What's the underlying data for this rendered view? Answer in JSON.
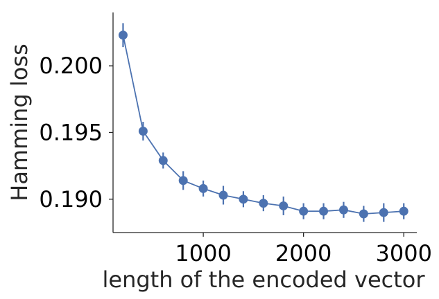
{
  "chart_data": {
    "type": "line",
    "xlabel": "length of the encoded vector",
    "ylabel": "Hamming loss",
    "xlim": [
      100,
      3130
    ],
    "ylim": [
      0.1875,
      0.204
    ],
    "xticks": [
      1000,
      2000,
      3000
    ],
    "yticks": [
      0.19,
      0.195,
      0.2
    ],
    "ytick_labels": [
      "0.190",
      "0.195",
      "0.200"
    ],
    "grid": false,
    "color": "#4c72b0",
    "series": [
      {
        "x": [
          200,
          400,
          600,
          800,
          1000,
          1200,
          1400,
          1600,
          1800,
          2000,
          2200,
          2400,
          2600,
          2800,
          3000
        ],
        "y": [
          0.2023,
          0.1951,
          0.1929,
          0.1914,
          0.1908,
          0.1903,
          0.19,
          0.1897,
          0.1895,
          0.1891,
          0.1891,
          0.1892,
          0.1889,
          0.189,
          0.1891
        ],
        "yerr": [
          0.0009,
          0.0007,
          0.0006,
          0.0007,
          0.0006,
          0.0007,
          0.0006,
          0.0006,
          0.0007,
          0.0006,
          0.0006,
          0.0006,
          0.0006,
          0.0007,
          0.0006
        ]
      }
    ]
  }
}
